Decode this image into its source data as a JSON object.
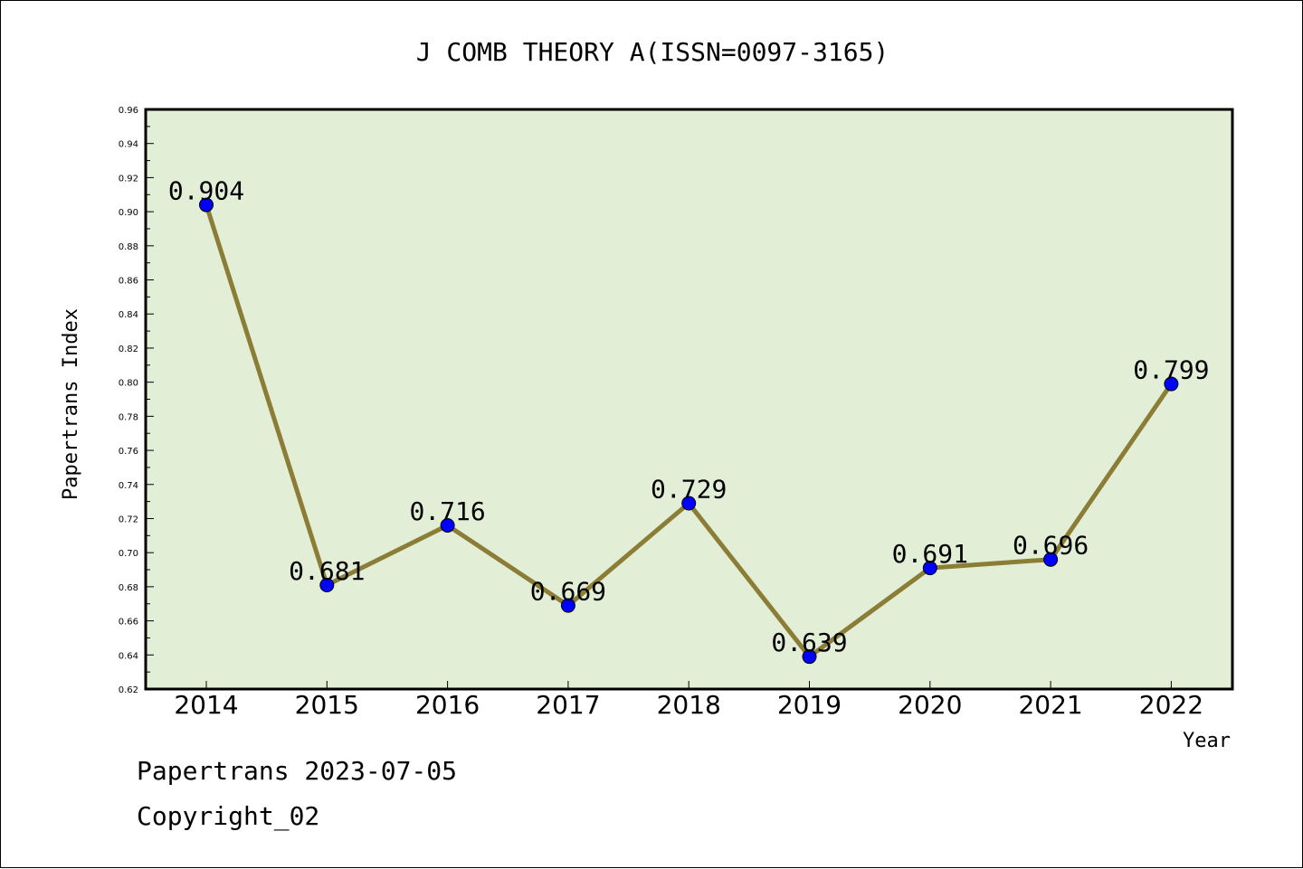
{
  "chart_data": {
    "type": "line",
    "title": "J COMB THEORY A(ISSN=0097-3165)",
    "xlabel": "Year",
    "ylabel": "Papertrans Index",
    "categories": [
      "2014",
      "2015",
      "2016",
      "2017",
      "2018",
      "2019",
      "2020",
      "2021",
      "2022"
    ],
    "series": [
      {
        "values": [
          0.904,
          0.681,
          0.716,
          0.669,
          0.729,
          0.639,
          0.691,
          0.696,
          0.799
        ],
        "labels": [
          "0.904",
          "0.681",
          "0.716",
          "0.669",
          "0.729",
          "0.639",
          "0.691",
          "0.696",
          "0.799"
        ]
      }
    ],
    "ylim": [
      0.62,
      0.96
    ],
    "yticks": [
      "0.62",
      "0.64",
      "0.66",
      "0.68",
      "0.70",
      "0.72",
      "0.74",
      "0.76",
      "0.78",
      "0.80",
      "0.82",
      "0.84",
      "0.86",
      "0.88",
      "0.90",
      "0.92",
      "0.94",
      "0.96"
    ],
    "grid": false,
    "colors": {
      "plot_background": "#e2efd6",
      "line": "#8b7d36",
      "marker": "#0000ff"
    }
  },
  "footer": {
    "line1": "Papertrans 2023-07-05",
    "line2": "Copyright_02"
  }
}
